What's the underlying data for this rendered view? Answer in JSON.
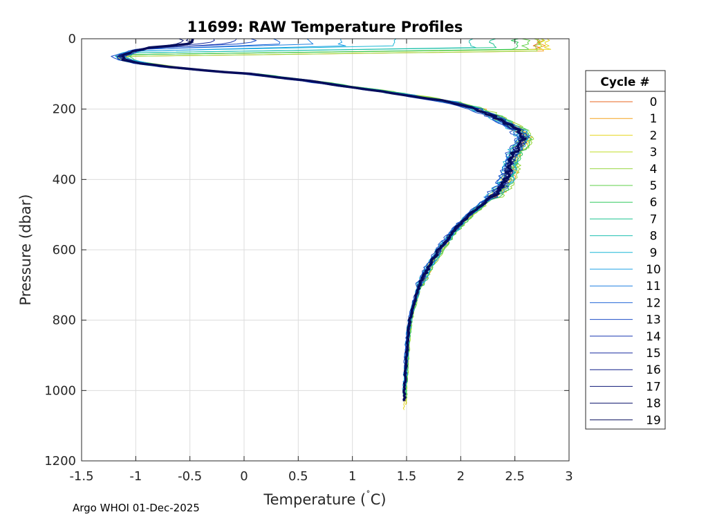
{
  "footer": "Argo WHOI 01-Dec-2025",
  "chart_data": {
    "type": "line",
    "title": "11699: RAW Temperature Profiles",
    "xlabel": "Temperature (",
    "xlabel_degree": "˚",
    "xlabel_unit": "C)",
    "ylabel": "Pressure (dbar)",
    "xlim": [
      -1.5,
      3
    ],
    "ylim": [
      0,
      1200
    ],
    "y_reversed": true,
    "grid": true,
    "xticks": [
      -1.5,
      -1,
      -0.5,
      0,
      0.5,
      1,
      1.5,
      2,
      2.5,
      3
    ],
    "xtick_labels": [
      "-1.5",
      "-1",
      "-0.5",
      "0",
      "0.5",
      "1",
      "1.5",
      "2",
      "2.5",
      "3"
    ],
    "yticks": [
      0,
      200,
      400,
      600,
      800,
      1000,
      1200
    ],
    "ytick_labels": [
      "0",
      "200",
      "400",
      "600",
      "800",
      "1000",
      "1200"
    ],
    "legend_title": "Cycle #",
    "legend_position": "outside-right",
    "highlight_series": "19",
    "base_profile": {
      "pressure": [
        0,
        10,
        20,
        30,
        40,
        50,
        60,
        70,
        80,
        90,
        100,
        120,
        140,
        160,
        180,
        200,
        220,
        240,
        260,
        280,
        300,
        320,
        340,
        360,
        380,
        400,
        420,
        440,
        460,
        480,
        500,
        550,
        600,
        650,
        700,
        750,
        800,
        850,
        900,
        950,
        1000,
        1020
      ],
      "temperature": [
        -0.45,
        -0.55,
        -0.8,
        -0.95,
        -1.05,
        -1.15,
        -1.1,
        -0.95,
        -0.7,
        -0.35,
        0.05,
        0.6,
        1.05,
        1.5,
        1.9,
        2.15,
        2.3,
        2.42,
        2.52,
        2.58,
        2.55,
        2.5,
        2.47,
        2.45,
        2.44,
        2.42,
        2.38,
        2.32,
        2.24,
        2.16,
        2.08,
        1.92,
        1.8,
        1.7,
        1.62,
        1.57,
        1.53,
        1.51,
        1.5,
        1.49,
        1.48,
        1.48
      ]
    },
    "series": [
      {
        "name": "0",
        "color": "#e8641f",
        "surface_temp": 2.7,
        "mixed_depth": 30,
        "offset": 0.03,
        "max_pressure": 1030
      },
      {
        "name": "1",
        "color": "#f5a21a",
        "surface_temp": 2.75,
        "mixed_depth": 35,
        "offset": 0.06,
        "max_pressure": 1040
      },
      {
        "name": "2",
        "color": "#e6d620",
        "surface_temp": 2.8,
        "mixed_depth": 30,
        "offset": -0.02,
        "max_pressure": 1055
      },
      {
        "name": "3",
        "color": "#c2de2b",
        "surface_temp": 2.75,
        "mixed_depth": 30,
        "offset": 0.05,
        "max_pressure": 1040
      },
      {
        "name": "4",
        "color": "#94d63a",
        "surface_temp": 2.7,
        "mixed_depth": 35,
        "offset": 0.08,
        "max_pressure": 1030
      },
      {
        "name": "5",
        "color": "#5fcf47",
        "surface_temp": 2.6,
        "mixed_depth": 30,
        "offset": 0.02,
        "max_pressure": 1030
      },
      {
        "name": "6",
        "color": "#31c95e",
        "surface_temp": 2.5,
        "mixed_depth": 30,
        "offset": 0.07,
        "max_pressure": 1020
      },
      {
        "name": "7",
        "color": "#1dc290",
        "surface_temp": 2.3,
        "mixed_depth": 25,
        "offset": -0.03,
        "max_pressure": 1020
      },
      {
        "name": "8",
        "color": "#1cbfb0",
        "surface_temp": 2.1,
        "mixed_depth": 25,
        "offset": 0.04,
        "max_pressure": 1010
      },
      {
        "name": "9",
        "color": "#18b6d6",
        "surface_temp": 1.4,
        "mixed_depth": 20,
        "offset": -0.05,
        "max_pressure": 1000
      },
      {
        "name": "10",
        "color": "#1a9fe4",
        "surface_temp": 0.9,
        "mixed_depth": 20,
        "offset": 0.05,
        "max_pressure": 990
      },
      {
        "name": "11",
        "color": "#1c7fe0",
        "surface_temp": 0.6,
        "mixed_depth": 15,
        "offset": -0.04,
        "max_pressure": 980
      },
      {
        "name": "12",
        "color": "#1d63d6",
        "surface_temp": 0.3,
        "mixed_depth": 15,
        "offset": 0.0,
        "max_pressure": 970
      },
      {
        "name": "13",
        "color": "#1b4bc7",
        "surface_temp": 0.1,
        "mixed_depth": 12,
        "offset": -0.06,
        "max_pressure": 960
      },
      {
        "name": "14",
        "color": "#1836b0",
        "surface_temp": -0.1,
        "mixed_depth": 12,
        "offset": 0.03,
        "max_pressure": 960
      },
      {
        "name": "15",
        "color": "#13279c",
        "surface_temp": -0.3,
        "mixed_depth": 10,
        "offset": -0.02,
        "max_pressure": 950
      },
      {
        "name": "16",
        "color": "#0f1c88",
        "surface_temp": -0.5,
        "mixed_depth": 10,
        "offset": 0.01,
        "max_pressure": 950
      },
      {
        "name": "17",
        "color": "#0b1576",
        "surface_temp": -0.6,
        "mixed_depth": 10,
        "offset": -0.01,
        "max_pressure": 940
      },
      {
        "name": "18",
        "color": "#081069",
        "surface_temp": -0.5,
        "mixed_depth": 10,
        "offset": 0.0,
        "max_pressure": 940
      },
      {
        "name": "19",
        "color": "#050c5c",
        "surface_temp": -0.45,
        "mixed_depth": 10,
        "offset": 0.0,
        "max_pressure": 1030
      }
    ]
  }
}
